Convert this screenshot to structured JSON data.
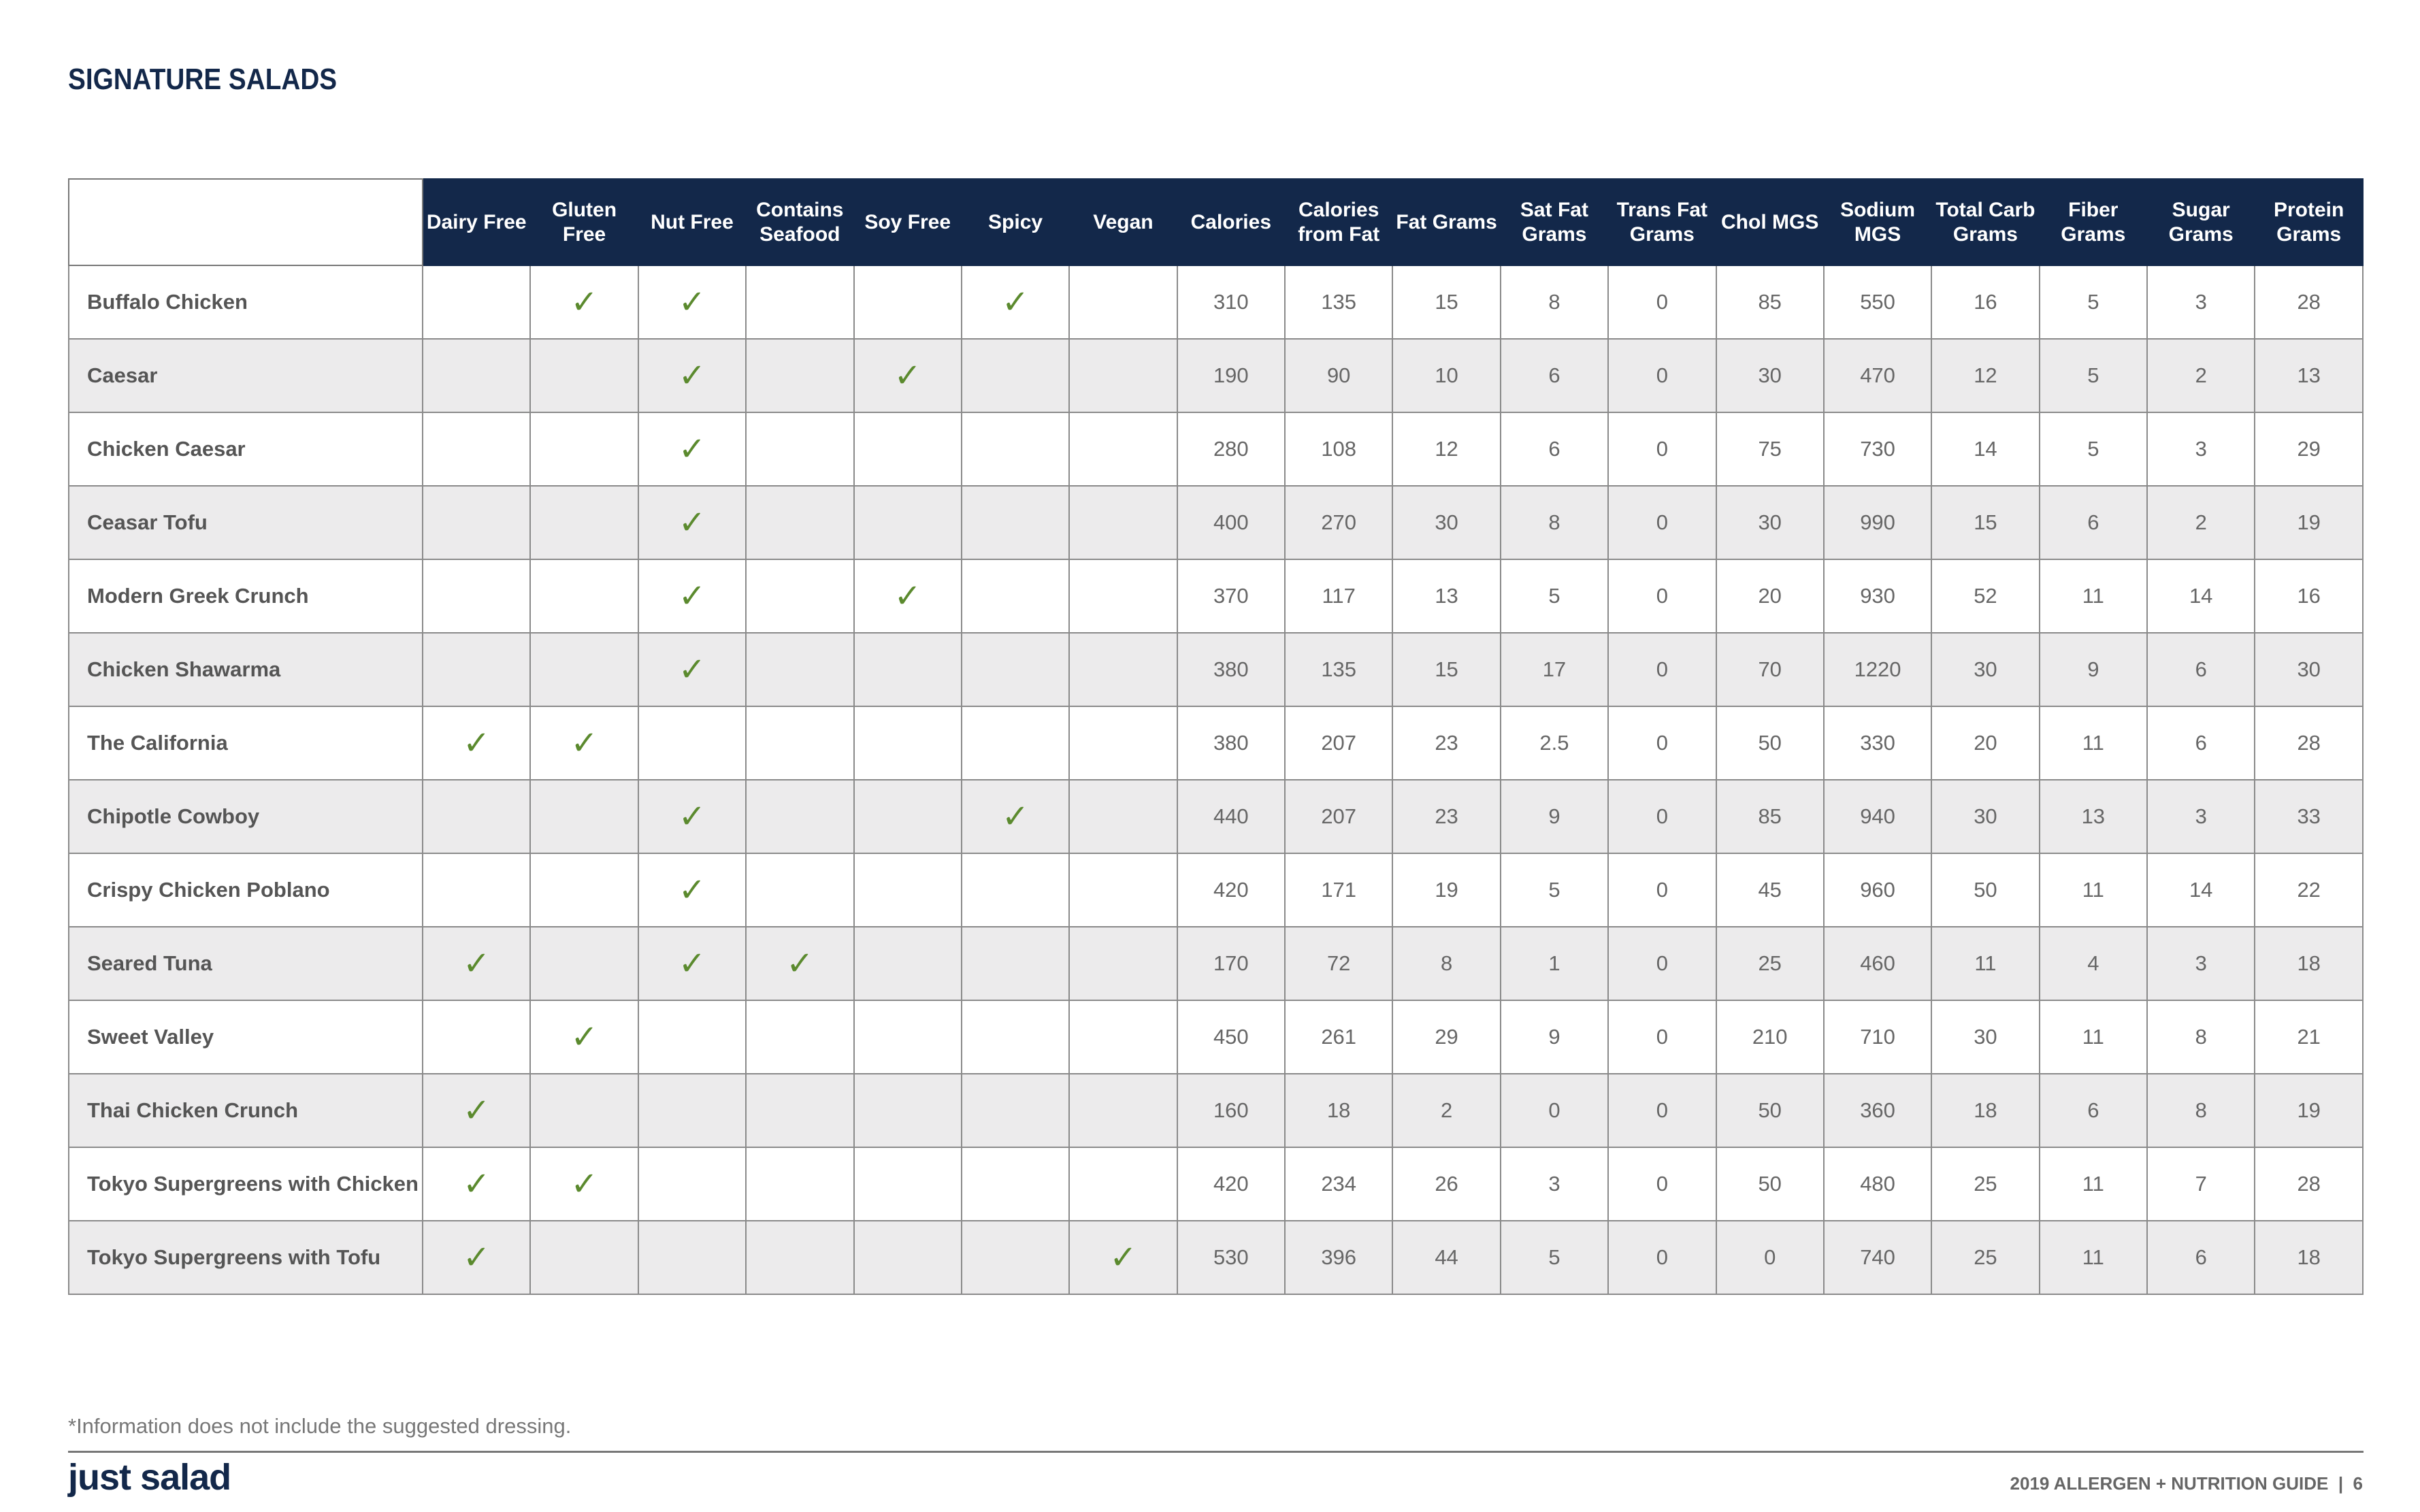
{
  "title": "SIGNATURE SALADS",
  "colors": {
    "header_bg": "#13284a",
    "check": "#5b8a2e",
    "alt_row": "#ecebec"
  },
  "check_icon": "checkmark-icon",
  "columns": [
    "Dairy Free",
    "Gluten Free",
    "Nut Free",
    "Contains Seafood",
    "Soy Free",
    "Spicy",
    "Vegan",
    "Calories",
    "Calories from Fat",
    "Fat Grams",
    "Sat Fat Grams",
    "Trans Fat Grams",
    "Chol MGS",
    "Sodium MGS",
    "Total Carb Grams",
    "Fiber Grams",
    "Sugar Grams",
    "Protein Grams"
  ],
  "rows": [
    {
      "name": "Buffalo Chicken",
      "flags": [
        false,
        true,
        true,
        false,
        false,
        true,
        false
      ],
      "values": [
        "310",
        "135",
        "15",
        "8",
        "0",
        "85",
        "550",
        "16",
        "5",
        "3",
        "28"
      ]
    },
    {
      "name": "Caesar",
      "flags": [
        false,
        false,
        true,
        false,
        true,
        false,
        false
      ],
      "values": [
        "190",
        "90",
        "10",
        "6",
        "0",
        "30",
        "470",
        "12",
        "5",
        "2",
        "13"
      ]
    },
    {
      "name": "Chicken Caesar",
      "flags": [
        false,
        false,
        true,
        false,
        false,
        false,
        false
      ],
      "values": [
        "280",
        "108",
        "12",
        "6",
        "0",
        "75",
        "730",
        "14",
        "5",
        "3",
        "29"
      ]
    },
    {
      "name": "Ceasar Tofu",
      "flags": [
        false,
        false,
        true,
        false,
        false,
        false,
        false
      ],
      "values": [
        "400",
        "270",
        "30",
        "8",
        "0",
        "30",
        "990",
        "15",
        "6",
        "2",
        "19"
      ]
    },
    {
      "name": "Modern Greek Crunch",
      "flags": [
        false,
        false,
        true,
        false,
        true,
        false,
        false
      ],
      "values": [
        "370",
        "117",
        "13",
        "5",
        "0",
        "20",
        "930",
        "52",
        "11",
        "14",
        "16"
      ]
    },
    {
      "name": "Chicken Shawarma",
      "flags": [
        false,
        false,
        true,
        false,
        false,
        false,
        false
      ],
      "values": [
        "380",
        "135",
        "15",
        "17",
        "0",
        "70",
        "1220",
        "30",
        "9",
        "6",
        "30"
      ]
    },
    {
      "name": "The California",
      "flags": [
        true,
        true,
        false,
        false,
        false,
        false,
        false
      ],
      "values": [
        "380",
        "207",
        "23",
        "2.5",
        "0",
        "50",
        "330",
        "20",
        "11",
        "6",
        "28"
      ]
    },
    {
      "name": "Chipotle Cowboy",
      "flags": [
        false,
        false,
        true,
        false,
        false,
        true,
        false
      ],
      "values": [
        "440",
        "207",
        "23",
        "9",
        "0",
        "85",
        "940",
        "30",
        "13",
        "3",
        "33"
      ]
    },
    {
      "name": "Crispy Chicken Poblano",
      "flags": [
        false,
        false,
        true,
        false,
        false,
        false,
        false
      ],
      "values": [
        "420",
        "171",
        "19",
        "5",
        "0",
        "45",
        "960",
        "50",
        "11",
        "14",
        "22"
      ]
    },
    {
      "name": "Seared Tuna",
      "flags": [
        true,
        false,
        true,
        true,
        false,
        false,
        false
      ],
      "values": [
        "170",
        "72",
        "8",
        "1",
        "0",
        "25",
        "460",
        "11",
        "4",
        "3",
        "18"
      ]
    },
    {
      "name": "Sweet Valley",
      "flags": [
        false,
        true,
        false,
        false,
        false,
        false,
        false
      ],
      "values": [
        "450",
        "261",
        "29",
        "9",
        "0",
        "210",
        "710",
        "30",
        "11",
        "8",
        "21"
      ]
    },
    {
      "name": "Thai Chicken Crunch",
      "flags": [
        true,
        false,
        false,
        false,
        false,
        false,
        false
      ],
      "values": [
        "160",
        "18",
        "2",
        "0",
        "0",
        "50",
        "360",
        "18",
        "6",
        "8",
        "19"
      ]
    },
    {
      "name": "Tokyo Supergreens with Chicken",
      "flags": [
        true,
        true,
        false,
        false,
        false,
        false,
        false
      ],
      "values": [
        "420",
        "234",
        "26",
        "3",
        "0",
        "50",
        "480",
        "25",
        "11",
        "7",
        "28"
      ]
    },
    {
      "name": "Tokyo Supergreens with Tofu",
      "flags": [
        true,
        false,
        false,
        false,
        false,
        false,
        true
      ],
      "values": [
        "530",
        "396",
        "44",
        "5",
        "0",
        "0",
        "740",
        "25",
        "11",
        "6",
        "18"
      ]
    }
  ],
  "footnote": "*Information does not include the suggested dressing.",
  "logo_text": "just salad",
  "footer_right": "2019 ALLERGEN + NUTRITION GUIDE  |  6"
}
